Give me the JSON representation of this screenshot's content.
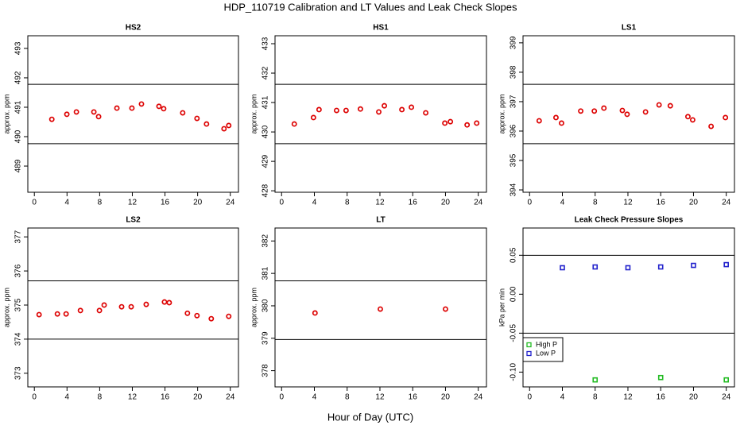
{
  "title": "HDP_110719  Calibration and LT Values and Leak Check Slopes",
  "xlabel": "Hour of Day (UTC)",
  "chart_data": [
    {
      "type": "scatter",
      "title": "HS2",
      "ylabel": "approx. ppm",
      "xlim": [
        -0.8,
        25
      ],
      "xticks": [
        0,
        4,
        8,
        12,
        16,
        20,
        24
      ],
      "ylim": [
        488.11,
        493.43
      ],
      "yticks": [
        489,
        490,
        491,
        492,
        493
      ],
      "hlines": [
        491.78,
        489.76
      ],
      "series": [
        {
          "color": "#dd0000",
          "marker": "circle",
          "x": [
            2.14,
            3.98,
            5.15,
            7.29,
            7.87,
            10.11,
            11.95,
            13.12,
            15.26,
            15.84,
            18.17,
            19.92,
            21.09,
            23.23,
            23.81
          ],
          "values": [
            490.59,
            490.76,
            490.84,
            490.84,
            490.68,
            490.97,
            490.97,
            491.11,
            491.03,
            490.95,
            490.81,
            490.62,
            490.43,
            490.27,
            490.38
          ]
        }
      ]
    },
    {
      "type": "scatter",
      "title": "HS1",
      "ylabel": "approx. ppm",
      "xlim": [
        -0.8,
        25
      ],
      "xticks": [
        0,
        4,
        8,
        12,
        16,
        20,
        24
      ],
      "ylim": [
        427.95,
        433.27
      ],
      "yticks": [
        428,
        429,
        430,
        431,
        432,
        433
      ],
      "hlines": [
        431.62,
        429.6
      ],
      "series": [
        {
          "color": "#dd0000",
          "marker": "circle",
          "x": [
            1.55,
            3.89,
            4.57,
            6.71,
            7.87,
            9.62,
            11.86,
            12.54,
            14.68,
            15.84,
            17.59,
            19.92,
            20.6,
            22.64,
            23.81
          ],
          "values": [
            430.27,
            430.49,
            430.76,
            430.73,
            430.73,
            430.78,
            430.68,
            430.89,
            430.76,
            430.84,
            430.65,
            430.3,
            430.35,
            430.24,
            430.3
          ]
        }
      ]
    },
    {
      "type": "scatter",
      "title": "LS1",
      "ylabel": "approx. ppm",
      "xlim": [
        -0.8,
        25
      ],
      "xticks": [
        0,
        4,
        8,
        12,
        16,
        20,
        24
      ],
      "ylim": [
        393.92,
        399.24
      ],
      "yticks": [
        394,
        395,
        396,
        397,
        398,
        399
      ],
      "hlines": [
        397.59,
        395.57
      ],
      "series": [
        {
          "color": "#dd0000",
          "marker": "circle",
          "x": [
            1.17,
            3.22,
            3.9,
            6.24,
            7.9,
            9.07,
            11.32,
            11.9,
            14.15,
            15.8,
            17.17,
            19.32,
            19.9,
            22.15,
            23.9
          ],
          "values": [
            396.35,
            396.46,
            396.27,
            396.68,
            396.68,
            396.78,
            396.7,
            396.57,
            396.65,
            396.89,
            396.86,
            396.49,
            396.38,
            396.16,
            396.46
          ]
        }
      ]
    },
    {
      "type": "scatter",
      "title": "LS2",
      "ylabel": "approx. ppm",
      "xlim": [
        -0.8,
        25
      ],
      "xticks": [
        0,
        4,
        8,
        12,
        16,
        20,
        24
      ],
      "ylim": [
        372.6,
        377.26
      ],
      "yticks": [
        373,
        374,
        375,
        376,
        377
      ],
      "hlines": [
        375.71,
        374.0
      ],
      "series": [
        {
          "color": "#dd0000",
          "marker": "circle",
          "x": [
            0.58,
            2.82,
            3.89,
            5.64,
            7.97,
            8.55,
            10.69,
            11.86,
            13.7,
            15.94,
            16.52,
            18.75,
            19.92,
            21.67,
            23.81
          ],
          "values": [
            374.72,
            374.74,
            374.74,
            374.84,
            374.84,
            375.0,
            374.95,
            374.95,
            375.02,
            375.09,
            375.07,
            374.76,
            374.69,
            374.6,
            374.67
          ]
        }
      ]
    },
    {
      "type": "scatter",
      "title": "LT",
      "ylabel": "approx. ppm",
      "xlim": [
        -0.8,
        25
      ],
      "xticks": [
        0,
        4,
        8,
        12,
        16,
        20,
        24
      ],
      "ylim": [
        377.5,
        382.4
      ],
      "yticks": [
        378,
        379,
        380,
        381,
        382
      ],
      "hlines": [
        380.77,
        378.96
      ],
      "series": [
        {
          "color": "#dd0000",
          "marker": "circle",
          "x": [
            4.08,
            12.05,
            20.0
          ],
          "values": [
            379.78,
            379.9,
            379.9
          ]
        }
      ]
    },
    {
      "type": "scatter",
      "title": "Leak Check Pressure Slopes",
      "ylabel": "kPa per min",
      "xlim": [
        -0.8,
        25
      ],
      "xticks": [
        0,
        4,
        8,
        12,
        16,
        20,
        24
      ],
      "ylim": [
        -0.119,
        0.085
      ],
      "yticks": [
        {
          "value": -0.1,
          "label": "-0.10"
        },
        -0.05,
        {
          "value": 0,
          "label": "0.00"
        },
        0.05
      ],
      "hlines": [
        0.05,
        -0.05
      ],
      "legend": "left",
      "series": [
        {
          "name": "High P",
          "color": "#22bb22",
          "marker": "square",
          "x": [
            8,
            16,
            24
          ],
          "values": [
            -0.11,
            -0.107,
            -0.11
          ]
        },
        {
          "name": "Low P",
          "color": "#2222cc",
          "marker": "square",
          "x": [
            4,
            8,
            12,
            16,
            20,
            24
          ],
          "values": [
            0.034,
            0.035,
            0.034,
            0.035,
            0.037,
            0.038
          ]
        }
      ]
    }
  ]
}
